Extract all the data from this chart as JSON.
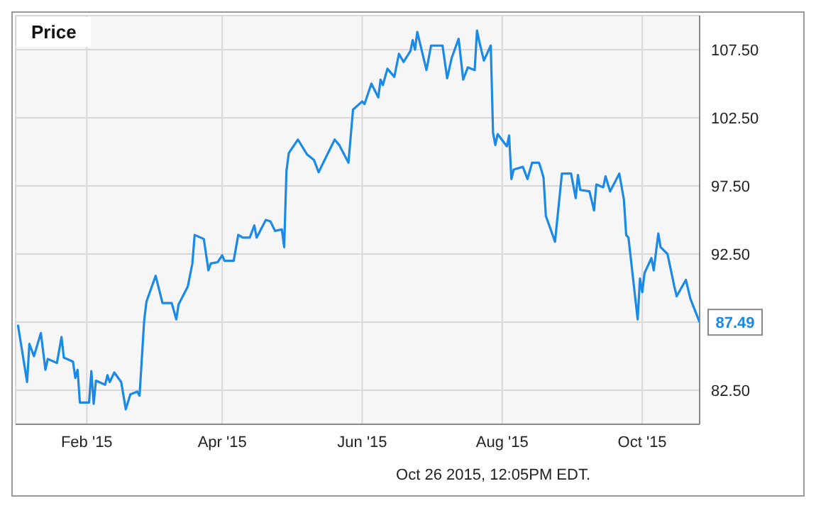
{
  "chart_data": {
    "type": "line",
    "title": "Price",
    "annotations": [
      {
        "text": "87.49",
        "x": "2015-10-26",
        "y": 87.49
      },
      "Oct 26 2015, 12:05PM EDT."
    ],
    "x": [
      "2015-01-02",
      "2015-01-06",
      "2015-01-07",
      "2015-01-09",
      "2015-01-12",
      "2015-01-14",
      "2015-01-15",
      "2015-01-19",
      "2015-01-21",
      "2015-01-22",
      "2015-01-26",
      "2015-01-27",
      "2015-01-28",
      "2015-01-29",
      "2015-02-02",
      "2015-02-03",
      "2015-02-04",
      "2015-02-05",
      "2015-02-09",
      "2015-02-10",
      "2015-02-11",
      "2015-02-13",
      "2015-02-16",
      "2015-02-18",
      "2015-02-20",
      "2015-02-23",
      "2015-02-24",
      "2015-02-26",
      "2015-02-27",
      "2015-03-03",
      "2015-03-06",
      "2015-03-10",
      "2015-03-12",
      "2015-03-13",
      "2015-03-17",
      "2015-03-19",
      "2015-03-20",
      "2015-03-24",
      "2015-03-26",
      "2015-03-27",
      "2015-03-30",
      "2015-04-01",
      "2015-04-02",
      "2015-04-06",
      "2015-04-08",
      "2015-04-10",
      "2015-04-13",
      "2015-04-15",
      "2015-04-16",
      "2015-04-20",
      "2015-04-22",
      "2015-04-24",
      "2015-04-27",
      "2015-04-28",
      "2015-04-29",
      "2015-04-30",
      "2015-05-04",
      "2015-05-08",
      "2015-05-11",
      "2015-05-13",
      "2015-05-20",
      "2015-05-22",
      "2015-05-26",
      "2015-05-28",
      "2015-06-01",
      "2015-06-02",
      "2015-06-05",
      "2015-06-08",
      "2015-06-09",
      "2015-06-10",
      "2015-06-12",
      "2015-06-15",
      "2015-06-17",
      "2015-06-19",
      "2015-06-22",
      "2015-06-23",
      "2015-06-24",
      "2015-06-25",
      "2015-06-29",
      "2015-07-01",
      "2015-07-06",
      "2015-07-08",
      "2015-07-10",
      "2015-07-13",
      "2015-07-15",
      "2015-07-17",
      "2015-07-20",
      "2015-07-21",
      "2015-07-22",
      "2015-07-24",
      "2015-07-27",
      "2015-07-28",
      "2015-07-29",
      "2015-07-30",
      "2015-08-03",
      "2015-08-04",
      "2015-08-05",
      "2015-08-06",
      "2015-08-10",
      "2015-08-12",
      "2015-08-14",
      "2015-08-17",
      "2015-08-18",
      "2015-08-19",
      "2015-08-20",
      "2015-08-24",
      "2015-08-27",
      "2015-08-31",
      "2015-09-02",
      "2015-09-03",
      "2015-09-04",
      "2015-09-08",
      "2015-09-10",
      "2015-09-11",
      "2015-09-14",
      "2015-09-15",
      "2015-09-17",
      "2015-09-21",
      "2015-09-23",
      "2015-09-24",
      "2015-09-25",
      "2015-09-29",
      "2015-09-30",
      "2015-10-01",
      "2015-10-02",
      "2015-10-05",
      "2015-10-06",
      "2015-10-08",
      "2015-10-09",
      "2015-10-12",
      "2015-10-15",
      "2015-10-16",
      "2015-10-20",
      "2015-10-22",
      "2015-10-26"
    ],
    "series": [
      {
        "color": "#1a8ae6",
        "values": [
          87.3,
          83.1,
          85.9,
          85.0,
          86.7,
          84.0,
          84.8,
          84.5,
          86.4,
          84.9,
          84.6,
          83.4,
          84.0,
          81.6,
          81.6,
          83.9,
          81.5,
          83.2,
          82.9,
          83.6,
          83.1,
          83.8,
          83.1,
          81.1,
          82.2,
          82.4,
          82.1,
          87.6,
          89.0,
          90.9,
          88.9,
          88.9,
          87.7,
          88.8,
          90.1,
          91.8,
          93.9,
          93.6,
          91.3,
          91.8,
          91.9,
          92.4,
          92.0,
          92.0,
          93.9,
          93.7,
          93.7,
          94.6,
          93.7,
          95.0,
          94.9,
          94.2,
          94.3,
          93.0,
          98.6,
          99.9,
          100.9,
          99.8,
          99.4,
          98.5,
          100.9,
          100.5,
          99.2,
          103.1,
          103.7,
          103.5,
          105.0,
          104.0,
          105.3,
          104.9,
          106.1,
          105.5,
          107.2,
          106.6,
          107.4,
          108.2,
          107.5,
          108.8,
          106.0,
          107.8,
          107.8,
          105.4,
          106.9,
          108.3,
          105.3,
          106.2,
          106.0,
          108.9,
          108.1,
          106.7,
          107.8,
          101.4,
          100.5,
          101.3,
          100.4,
          101.2,
          98.0,
          98.7,
          98.9,
          98.0,
          99.2,
          99.2,
          98.7,
          98.1,
          95.3,
          93.4,
          98.4,
          98.4,
          96.6,
          98.3,
          97.2,
          97.1,
          95.7,
          97.6,
          97.4,
          98.2,
          97.1,
          98.4,
          96.5,
          93.9,
          93.7,
          87.7,
          90.7,
          89.7,
          91.1,
          92.2,
          91.3,
          94.0,
          93.0,
          92.5,
          90.1,
          89.4,
          90.6,
          89.2,
          87.49
        ]
      }
    ],
    "xlim": [
      "2015-01-01",
      "2015-10-26"
    ],
    "xticks": [
      {
        "value": "2015-02-01",
        "label": "Feb '15"
      },
      {
        "value": "2015-04-01",
        "label": "Apr '15"
      },
      {
        "value": "2015-06-01",
        "label": "Jun '15"
      },
      {
        "value": "2015-08-01",
        "label": "Aug '15"
      },
      {
        "value": "2015-10-01",
        "label": "Oct '15"
      }
    ],
    "ylim": [
      80,
      110
    ],
    "yticks": [
      {
        "value": 82.5,
        "label": "82.50"
      },
      {
        "value": 87.5,
        "label": null
      },
      {
        "value": 92.5,
        "label": "92.50"
      },
      {
        "value": 97.5,
        "label": "97.50"
      },
      {
        "value": 102.5,
        "label": "102.50"
      },
      {
        "value": 107.5,
        "label": "107.50"
      }
    ],
    "grid": true
  }
}
